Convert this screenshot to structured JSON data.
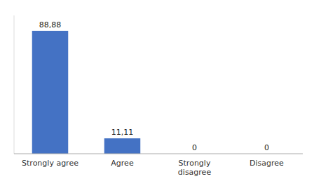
{
  "chart_data": {
    "type": "bar",
    "categories": [
      "Strongly agree",
      "Agree",
      "Strongly\ndisagree",
      "Disagree"
    ],
    "values": [
      88.88,
      11.11,
      0,
      0
    ],
    "value_labels": [
      "88,88",
      "11,11",
      "0",
      "0"
    ],
    "color": "#4472c4",
    "ylim": [
      0,
      100
    ],
    "data_labels": true,
    "tick_labels": "x"
  }
}
